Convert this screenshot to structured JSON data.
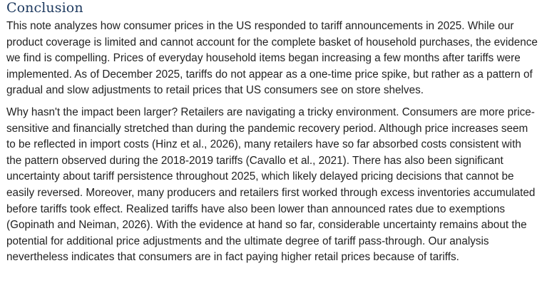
{
  "section": {
    "heading": "Conclusion",
    "paragraphs": [
      "This note analyzes how consumer prices in the US responded to tariff announcements in 2025. While our product coverage is limited and cannot account for the complete basket of household purchases, the evidence we find is compelling. Prices of everyday household items began increasing a few months after tariffs were implemented. As of December 2025, tariffs do not appear as a one-time price spike, but rather as a pattern of gradual and slow adjustments to retail prices that US consumers see on store shelves.",
      "Why hasn't the impact been larger? Retailers are navigating a tricky environment. Consumers are more price-sensitive and financially stretched than during the pandemic recovery period. Although price increases seem to be reflected in import costs (Hinz et al., 2026), many retailers have so far absorbed costs consistent with the pattern observed during the 2018-2019 tariffs (Cavallo et al., 2021). There has also been significant uncertainty about tariff persistence throughout 2025, which likely delayed pricing decisions that cannot be easily reversed. Moreover, many producers and retailers first worked through excess inventories accumulated before tariffs took effect. Realized tariffs have also been lower than announced rates due to exemptions (Gopinath and Neiman, 2026). With the evidence at hand so far, considerable uncertainty remains about the potential for additional price adjustments and the ultimate degree of tariff pass-through. Our analysis nevertheless indicates that consumers are in fact paying higher retail prices because of tariffs."
    ]
  }
}
